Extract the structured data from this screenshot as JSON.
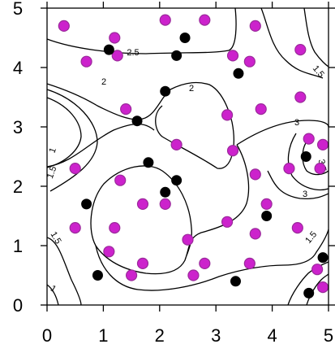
{
  "chart_data": {
    "type": "scatter",
    "title": "",
    "xlabel": "",
    "ylabel": "",
    "xlim": [
      0,
      5
    ],
    "ylim": [
      0,
      5
    ],
    "x_ticks": [
      "0",
      "1",
      "2",
      "3",
      "4",
      "5"
    ],
    "y_ticks": [
      "0",
      "1",
      "2",
      "3",
      "4",
      "5"
    ],
    "grid": false,
    "series": [
      {
        "marker": "magenta",
        "color": "#cc22cc",
        "points": [
          [
            0.3,
            4.7
          ],
          [
            0.7,
            4.1
          ],
          [
            1.2,
            4.5
          ],
          [
            1.25,
            4.2
          ],
          [
            2.1,
            4.8
          ],
          [
            2.8,
            4.8
          ],
          [
            3.3,
            4.2
          ],
          [
            3.6,
            4.1
          ],
          [
            3.7,
            4.7
          ],
          [
            4.5,
            4.3
          ],
          [
            4.5,
            3.5
          ],
          [
            1.4,
            3.3
          ],
          [
            3.2,
            3.2
          ],
          [
            3.8,
            3.3
          ],
          [
            2.3,
            2.7
          ],
          [
            3.3,
            2.6
          ],
          [
            0.5,
            2.3
          ],
          [
            1.3,
            2.1
          ],
          [
            3.7,
            2.2
          ],
          [
            4.3,
            2.3
          ],
          [
            4.65,
            2.8
          ],
          [
            4.85,
            2.3
          ],
          [
            4.9,
            2.7
          ],
          [
            1.7,
            1.7
          ],
          [
            2.1,
            1.7
          ],
          [
            3.9,
            1.7
          ],
          [
            0.5,
            1.3
          ],
          [
            1.2,
            1.3
          ],
          [
            3.2,
            1.4
          ],
          [
            3.7,
            1.2
          ],
          [
            4.45,
            1.3
          ],
          [
            2.5,
            1.1
          ],
          [
            1.1,
            0.9
          ],
          [
            1.7,
            0.7
          ],
          [
            1.5,
            0.5
          ],
          [
            2.8,
            0.7
          ],
          [
            3.6,
            0.7
          ],
          [
            2.6,
            0.5
          ],
          [
            4.8,
            0.6
          ],
          [
            4.9,
            0.3
          ]
        ]
      },
      {
        "marker": "black",
        "color": "#000000",
        "points": [
          [
            1.1,
            4.3
          ],
          [
            2.45,
            4.5
          ],
          [
            2.3,
            4.2
          ],
          [
            3.4,
            3.9
          ],
          [
            2.1,
            3.6
          ],
          [
            1.6,
            3.1
          ],
          [
            1.8,
            2.4
          ],
          [
            2.3,
            2.1
          ],
          [
            2.1,
            1.9
          ],
          [
            0.7,
            1.7
          ],
          [
            3.9,
            1.5
          ],
          [
            4.6,
            2.5
          ],
          [
            4.9,
            0.8
          ],
          [
            0.9,
            0.5
          ],
          [
            3.35,
            0.4
          ],
          [
            4.65,
            0.2
          ]
        ]
      }
    ],
    "contours": [
      {
        "level": "1"
      },
      {
        "level": "1.5"
      },
      {
        "level": "2"
      },
      {
        "level": "2.5"
      },
      {
        "level": "3"
      },
      {
        "level": "3.5"
      }
    ],
    "contour_labels": [
      "2.5",
      "2",
      "2",
      "1",
      "1.5",
      "1.5",
      "3",
      "3",
      "3.5",
      "1.5",
      "1.5",
      "1"
    ]
  }
}
